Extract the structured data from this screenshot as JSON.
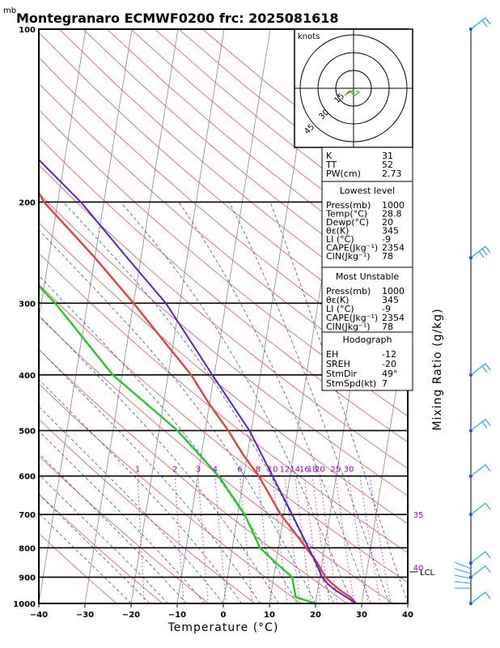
{
  "title": "Montegranaro ECMWF0200 frc: 2025081618",
  "pressure_unit": "mb",
  "x_axis_label": "Temperature (°C)",
  "right_axis_label": "Mixing Ratio (g/kg)",
  "lcl_label": "LCL",
  "hodograph": {
    "label": "knots",
    "ring_labels": [
      "15",
      "30",
      "45"
    ]
  },
  "indices": {
    "top": [
      {
        "k": "K",
        "v": "31"
      },
      {
        "k": "TT",
        "v": "52"
      },
      {
        "k": "PW(cm)",
        "v": "2.73"
      }
    ],
    "lowest": {
      "header": "Lowest level",
      "rows": [
        {
          "k": "Press(mb)",
          "v": "1000"
        },
        {
          "k": "Temp(°C)",
          "v": "28.8"
        },
        {
          "k": "Dewp(°C)",
          "v": "20"
        },
        {
          "k": "θε(K)",
          "v": "345"
        },
        {
          "k": "LI (°C)",
          "v": "-9"
        },
        {
          "k": "CAPE(Jkg⁻¹)",
          "v": "2354"
        },
        {
          "k": "CIN(Jkg⁻¹)",
          "v": "78"
        }
      ]
    },
    "unstable": {
      "header": "Most Unstable",
      "rows": [
        {
          "k": "Press(mb)",
          "v": "1000"
        },
        {
          "k": "θε(K)",
          "v": "345"
        },
        {
          "k": "LI (°C)",
          "v": "-9"
        },
        {
          "k": "CAPE(Jkg⁻¹)",
          "v": "2354"
        },
        {
          "k": "CIN(Jkg⁻¹)",
          "v": "78"
        }
      ]
    },
    "hodo": {
      "header": "Hodograph",
      "rows": [
        {
          "k": "EH",
          "v": "-12"
        },
        {
          "k": "SREH",
          "v": "-20"
        },
        {
          "k": "StmDir",
          "v": "49°"
        },
        {
          "k": "StmSpd(kt)",
          "v": "7"
        }
      ]
    }
  },
  "chart_data": {
    "type": "line",
    "diagram": "skew-T log-P",
    "xlabel": "Temperature (°C)",
    "ylabel": "mb",
    "xlim": [
      -40,
      40
    ],
    "ylim": [
      1000,
      100
    ],
    "y_scale": "log",
    "x_ticks": [
      -40,
      -30,
      -20,
      -10,
      0,
      10,
      20,
      30,
      40
    ],
    "pressure_ticks": [
      100,
      200,
      300,
      400,
      500,
      600,
      700,
      800,
      900,
      1000
    ],
    "mixing_ratio_labels": [
      {
        "label": "1",
        "value": 1
      },
      {
        "label": "2",
        "value": 2
      },
      {
        "label": "3",
        "value": 3
      },
      {
        "label": "4",
        "value": 4
      },
      {
        "label": "6",
        "value": 6
      },
      {
        "label": "8",
        "value": 8
      },
      {
        "label": "10",
        "value": 10
      },
      {
        "label": "12",
        "value": 12
      },
      {
        "label": "14",
        "value": 14
      },
      {
        "label": "16",
        "value": 16
      },
      {
        "label": "18",
        "value": 18
      },
      {
        "label": "20",
        "value": 20
      },
      {
        "label": "25",
        "value": 25
      },
      {
        "label": "30",
        "value": 30
      },
      {
        "label": "35",
        "value": 35
      },
      {
        "label": "40",
        "value": 40
      }
    ],
    "colors": {
      "temperature": "#e8403c",
      "dewpoint": "#22cc22",
      "parcel": "#5522cc",
      "isotherm": "#000000",
      "dry_adiabat": "#ee5555",
      "moist_adiabat": "#3355dd",
      "mixing_ratio": "#aa22cc",
      "isobar": "#000000",
      "wind_barb": "#22aadd"
    },
    "series": [
      {
        "name": "temperature",
        "points": [
          {
            "p": 1000,
            "t": 28.8
          },
          {
            "p": 975,
            "t": 27.4
          },
          {
            "p": 950,
            "t": 25.0
          },
          {
            "p": 925,
            "t": 23.0
          },
          {
            "p": 900,
            "t": 21.2
          },
          {
            "p": 850,
            "t": 19.0
          },
          {
            "p": 800,
            "t": 16.0
          },
          {
            "p": 750,
            "t": 12.8
          },
          {
            "p": 700,
            "t": 9.3
          },
          {
            "p": 650,
            "t": 6.4
          },
          {
            "p": 600,
            "t": 3.2
          },
          {
            "p": 550,
            "t": -1.0
          },
          {
            "p": 500,
            "t": -5.0
          },
          {
            "p": 450,
            "t": -10.0
          },
          {
            "p": 400,
            "t": -15.0
          },
          {
            "p": 350,
            "t": -22.0
          },
          {
            "p": 300,
            "t": -30.0
          },
          {
            "p": 250,
            "t": -40.0
          },
          {
            "p": 200,
            "t": -53.0
          },
          {
            "p": 150,
            "t": -64.0
          },
          {
            "p": 100,
            "t": -76.0
          }
        ]
      },
      {
        "name": "dewpoint",
        "points": [
          {
            "p": 1000,
            "t": 20.0
          },
          {
            "p": 975,
            "t": 15.5
          },
          {
            "p": 925,
            "t": 14.5
          },
          {
            "p": 900,
            "t": 14.0
          },
          {
            "p": 850,
            "t": 10.0
          },
          {
            "p": 800,
            "t": 6.0
          },
          {
            "p": 700,
            "t": 1.5
          },
          {
            "p": 600,
            "t": -5.5
          },
          {
            "p": 500,
            "t": -16.0
          },
          {
            "p": 400,
            "t": -32.0
          },
          {
            "p": 300,
            "t": -47.0
          },
          {
            "p": 250,
            "t": -58.0
          },
          {
            "p": 200,
            "t": -68.0
          },
          {
            "p": 150,
            "t": -80.0
          },
          {
            "p": 100,
            "t": -92.0
          }
        ]
      },
      {
        "name": "parcel",
        "points": [
          {
            "p": 1000,
            "t": 28.8
          },
          {
            "p": 975,
            "t": 26.5
          },
          {
            "p": 950,
            "t": 24.0
          },
          {
            "p": 925,
            "t": 22.0
          },
          {
            "p": 900,
            "t": 20.5
          },
          {
            "p": 850,
            "t": 18.7
          },
          {
            "p": 800,
            "t": 16.5
          },
          {
            "p": 700,
            "t": 11.8
          },
          {
            "p": 600,
            "t": 6.2
          },
          {
            "p": 500,
            "t": -0.4
          },
          {
            "p": 400,
            "t": -10.4
          },
          {
            "p": 300,
            "t": -23.0
          },
          {
            "p": 250,
            "t": -33.0
          },
          {
            "p": 200,
            "t": -45.0
          },
          {
            "p": 150,
            "t": -63.0
          },
          {
            "p": 100,
            "t": -83.0
          }
        ]
      }
    ],
    "wind_barbs": [
      {
        "p": 100,
        "speed_kt": 20
      },
      {
        "p": 250,
        "speed_kt": 30
      },
      {
        "p": 400,
        "speed_kt": 15
      },
      {
        "p": 500,
        "speed_kt": 15
      },
      {
        "p": 600,
        "speed_kt": 10
      },
      {
        "p": 700,
        "speed_kt": 10
      },
      {
        "p": 850,
        "speed_kt": 10
      },
      {
        "p": 900,
        "speed_kt": 10
      },
      {
        "p": 1000,
        "speed_kt": 10
      }
    ]
  }
}
